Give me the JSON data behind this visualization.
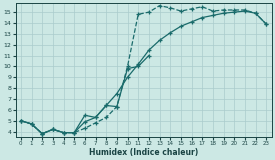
{
  "xlabel": "Humidex (Indice chaleur)",
  "background_color": "#cce8e4",
  "grid_color": "#aacccc",
  "line_color": "#1a6b6b",
  "xlim": [
    -0.5,
    23.5
  ],
  "ylim": [
    3.5,
    15.8
  ],
  "xticks": [
    0,
    1,
    2,
    3,
    4,
    5,
    6,
    7,
    8,
    9,
    10,
    11,
    12,
    13,
    14,
    15,
    16,
    17,
    18,
    19,
    20,
    21,
    22,
    23
  ],
  "yticks": [
    4,
    5,
    6,
    7,
    8,
    9,
    10,
    11,
    12,
    13,
    14,
    15
  ],
  "line1_x": [
    0,
    1,
    2,
    3,
    4,
    5,
    6,
    7,
    8,
    9,
    10,
    11,
    12,
    13,
    14,
    15,
    16,
    17,
    18,
    19,
    20,
    21,
    22,
    23
  ],
  "line1_y": [
    5.0,
    4.7,
    3.8,
    4.2,
    3.9,
    3.9,
    4.3,
    4.8,
    5.3,
    6.3,
    10.0,
    14.8,
    15.0,
    15.6,
    15.4,
    15.1,
    15.3,
    15.5,
    15.1,
    15.2,
    15.2,
    15.2,
    14.9,
    13.9
  ],
  "line2_x": [
    0,
    1,
    2,
    3,
    4,
    5,
    6,
    7,
    8,
    9,
    10,
    11,
    12,
    13,
    14,
    15,
    16,
    17,
    18,
    19,
    20,
    21,
    22,
    23
  ],
  "line2_y": [
    5.0,
    4.7,
    3.8,
    4.2,
    3.9,
    3.9,
    4.9,
    5.3,
    6.4,
    7.5,
    9.0,
    10.2,
    11.5,
    12.4,
    13.1,
    13.7,
    14.1,
    14.5,
    14.7,
    14.9,
    15.0,
    15.1,
    14.9,
    13.9
  ],
  "line3_x": [
    0,
    1,
    2,
    3,
    4,
    5,
    6,
    7,
    8,
    9,
    10,
    11,
    12
  ],
  "line3_y": [
    5.0,
    4.7,
    3.8,
    4.2,
    3.9,
    3.9,
    5.5,
    5.3,
    6.4,
    6.3,
    9.8,
    10.0,
    11.0
  ]
}
